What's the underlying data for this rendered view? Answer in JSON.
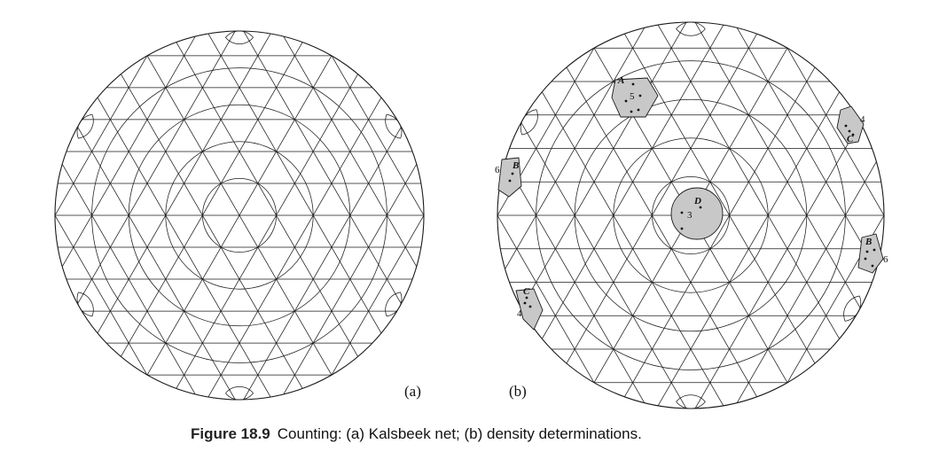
{
  "panels": [
    {
      "id": "a",
      "label": "(a)"
    },
    {
      "id": "b",
      "label": "(b)"
    }
  ],
  "regions": [
    {
      "letter": "A",
      "count": "5",
      "points": 5
    },
    {
      "letter": "C",
      "count": "4",
      "points": 3
    },
    {
      "letter": "B",
      "count": "6",
      "points": 2
    },
    {
      "letter": "D",
      "count": "3",
      "points": 3
    },
    {
      "letter": "B",
      "count": "6",
      "points": 4
    },
    {
      "letter": "C",
      "count": "4",
      "points": 3
    }
  ],
  "caption": {
    "figure_number": "Figure 18.9",
    "text": "Counting: (a) Kalsbeek net; (b) density determinations."
  }
}
